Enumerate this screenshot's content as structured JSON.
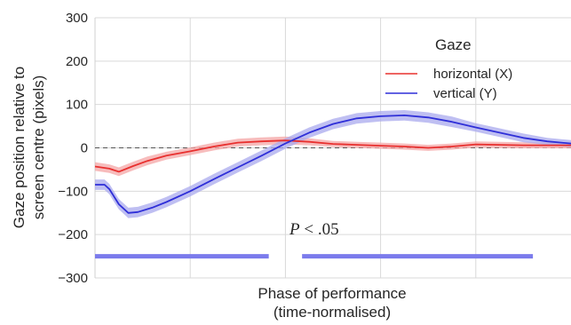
{
  "chart_data": {
    "type": "line",
    "title": "",
    "xlabel_line1": "Phase of performance",
    "xlabel_line2": "(time-normalised)",
    "ylabel_line1": "Gaze position relative to",
    "ylabel_line2": "screen centre (pixels)",
    "xlim": [
      0,
      1
    ],
    "ylim": [
      -300,
      300
    ],
    "yticks": [
      -300,
      -200,
      -100,
      0,
      100,
      200,
      300
    ],
    "ytick_labels": [
      "−300",
      "−200",
      "−100",
      "0",
      "100",
      "200",
      "300"
    ],
    "xgrid": [
      0.2,
      0.4,
      0.6,
      0.8
    ],
    "grid": true,
    "zero_line": true,
    "legend": {
      "title": "Gaze",
      "placement": "top-right"
    },
    "series": [
      {
        "name": "horizontal (X)",
        "color": "#e8302f",
        "band_color": "#f4a5a5",
        "x": [
          0.0,
          0.03,
          0.05,
          0.08,
          0.11,
          0.15,
          0.2,
          0.25,
          0.3,
          0.35,
          0.4,
          0.45,
          0.5,
          0.55,
          0.6,
          0.65,
          0.7,
          0.75,
          0.8,
          0.85,
          0.9,
          0.95,
          1.0
        ],
        "y": [
          -43,
          -48,
          -55,
          -42,
          -30,
          -18,
          -8,
          3,
          12,
          15,
          17,
          14,
          9,
          7,
          5,
          3,
          0,
          3,
          8,
          7,
          6,
          6,
          6
        ],
        "ci": [
          10,
          10,
          10,
          10,
          10,
          9,
          9,
          9,
          9,
          9,
          9,
          8,
          7,
          7,
          7,
          7,
          7,
          7,
          7,
          7,
          7,
          7,
          7
        ]
      },
      {
        "name": "vertical (Y)",
        "color": "#2f2fd8",
        "band_color": "#a9a9ee",
        "x": [
          0.0,
          0.02,
          0.03,
          0.05,
          0.07,
          0.09,
          0.12,
          0.15,
          0.2,
          0.25,
          0.3,
          0.35,
          0.4,
          0.45,
          0.5,
          0.55,
          0.6,
          0.65,
          0.7,
          0.75,
          0.8,
          0.85,
          0.9,
          0.95,
          1.0
        ],
        "y": [
          -85,
          -85,
          -95,
          -130,
          -150,
          -148,
          -138,
          -125,
          -100,
          -72,
          -45,
          -18,
          10,
          35,
          55,
          68,
          73,
          75,
          70,
          60,
          47,
          35,
          23,
          15,
          10
        ],
        "ci": [
          12,
          12,
          12,
          12,
          12,
          12,
          12,
          12,
          12,
          12,
          12,
          12,
          12,
          12,
          12,
          12,
          12,
          12,
          12,
          12,
          10,
          10,
          10,
          8,
          8
        ]
      }
    ],
    "significance": {
      "label_p": "P",
      "label_rest": "< .05",
      "color": "#7b7bec",
      "y": -250,
      "ranges": [
        [
          0.0,
          0.365
        ],
        [
          0.435,
          0.92
        ]
      ]
    }
  }
}
